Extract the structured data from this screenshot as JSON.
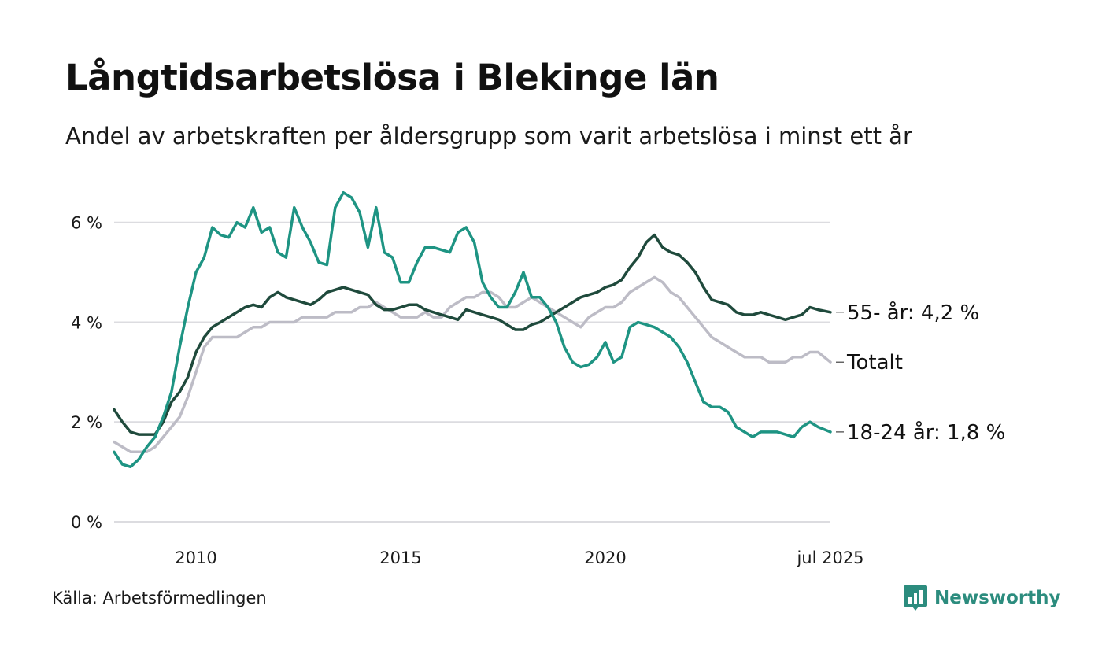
{
  "title": "Långtidsarbetslösa i Blekinge län",
  "subtitle": "Andel av arbetskraften per åldersgrupp som varit arbetslösa i minst ett år",
  "source": "Källa: Arbetsförmedlingen",
  "logo": {
    "text": "Newsworthy",
    "icon": "newsworthy-logo-icon",
    "color": "#2c8c7e"
  },
  "chart_data": {
    "type": "line",
    "title": "Långtidsarbetslösa i Blekinge län",
    "xlabel": "",
    "ylabel": "",
    "xlim": [
      2008.0,
      2025.5
    ],
    "ylim": [
      0,
      6.8
    ],
    "yticks": [
      0,
      2,
      4,
      6
    ],
    "ytick_labels": [
      "0 %",
      "2 %",
      "4 %",
      "6 %"
    ],
    "xticks": [
      2010,
      2015,
      2020,
      2025.5
    ],
    "xtick_labels": [
      "2010",
      "2015",
      "2020",
      "jul 2025"
    ],
    "grid": "horizontal",
    "legend": "direct labels at right end of lines",
    "series": [
      {
        "name": "Totalt",
        "end_label": "Totalt",
        "color": "#bdbcc6",
        "x": [
          2008.0,
          2008.2,
          2008.4,
          2008.6,
          2008.8,
          2009.0,
          2009.2,
          2009.4,
          2009.6,
          2009.8,
          2010.0,
          2010.2,
          2010.4,
          2010.6,
          2010.8,
          2011.0,
          2011.2,
          2011.4,
          2011.6,
          2011.8,
          2012.0,
          2012.2,
          2012.4,
          2012.6,
          2012.8,
          2013.0,
          2013.2,
          2013.4,
          2013.6,
          2013.8,
          2014.0,
          2014.2,
          2014.4,
          2014.6,
          2014.8,
          2015.0,
          2015.2,
          2015.4,
          2015.6,
          2015.8,
          2016.0,
          2016.2,
          2016.4,
          2016.6,
          2016.8,
          2017.0,
          2017.2,
          2017.4,
          2017.6,
          2017.8,
          2018.0,
          2018.2,
          2018.4,
          2018.6,
          2018.8,
          2019.0,
          2019.2,
          2019.4,
          2019.6,
          2019.8,
          2020.0,
          2020.2,
          2020.4,
          2020.6,
          2020.8,
          2021.0,
          2021.2,
          2021.4,
          2021.6,
          2021.8,
          2022.0,
          2022.2,
          2022.4,
          2022.6,
          2022.8,
          2023.0,
          2023.2,
          2023.4,
          2023.6,
          2023.8,
          2024.0,
          2024.2,
          2024.4,
          2024.6,
          2024.8,
          2025.0,
          2025.2,
          2025.5
        ],
        "y": [
          1.6,
          1.5,
          1.4,
          1.4,
          1.4,
          1.5,
          1.7,
          1.9,
          2.1,
          2.5,
          3.0,
          3.5,
          3.7,
          3.7,
          3.7,
          3.7,
          3.8,
          3.9,
          3.9,
          4.0,
          4.0,
          4.0,
          4.0,
          4.1,
          4.1,
          4.1,
          4.1,
          4.2,
          4.2,
          4.2,
          4.3,
          4.3,
          4.4,
          4.3,
          4.2,
          4.1,
          4.1,
          4.1,
          4.2,
          4.1,
          4.1,
          4.3,
          4.4,
          4.5,
          4.5,
          4.6,
          4.6,
          4.5,
          4.3,
          4.3,
          4.4,
          4.5,
          4.4,
          4.3,
          4.2,
          4.1,
          4.0,
          3.9,
          4.1,
          4.2,
          4.3,
          4.3,
          4.4,
          4.6,
          4.7,
          4.8,
          4.9,
          4.8,
          4.6,
          4.5,
          4.3,
          4.1,
          3.9,
          3.7,
          3.6,
          3.5,
          3.4,
          3.3,
          3.3,
          3.3,
          3.2,
          3.2,
          3.2,
          3.3,
          3.3,
          3.4,
          3.4,
          3.2
        ]
      },
      {
        "name": "55- år",
        "end_label": "55- år: 4,2 %",
        "color": "#1f4a3c",
        "x": [
          2008.0,
          2008.2,
          2008.4,
          2008.6,
          2008.8,
          2009.0,
          2009.2,
          2009.4,
          2009.6,
          2009.8,
          2010.0,
          2010.2,
          2010.4,
          2010.6,
          2010.8,
          2011.0,
          2011.2,
          2011.4,
          2011.6,
          2011.8,
          2012.0,
          2012.2,
          2012.4,
          2012.6,
          2012.8,
          2013.0,
          2013.2,
          2013.4,
          2013.6,
          2013.8,
          2014.0,
          2014.2,
          2014.4,
          2014.6,
          2014.8,
          2015.0,
          2015.2,
          2015.4,
          2015.6,
          2015.8,
          2016.0,
          2016.2,
          2016.4,
          2016.6,
          2016.8,
          2017.0,
          2017.2,
          2017.4,
          2017.6,
          2017.8,
          2018.0,
          2018.2,
          2018.4,
          2018.6,
          2018.8,
          2019.0,
          2019.2,
          2019.4,
          2019.6,
          2019.8,
          2020.0,
          2020.2,
          2020.4,
          2020.6,
          2020.8,
          2021.0,
          2021.2,
          2021.4,
          2021.6,
          2021.8,
          2022.0,
          2022.2,
          2022.4,
          2022.6,
          2022.8,
          2023.0,
          2023.2,
          2023.4,
          2023.6,
          2023.8,
          2024.0,
          2024.2,
          2024.4,
          2024.6,
          2024.8,
          2025.0,
          2025.2,
          2025.5
        ],
        "y": [
          2.25,
          2.0,
          1.8,
          1.75,
          1.75,
          1.75,
          2.0,
          2.4,
          2.6,
          2.9,
          3.4,
          3.7,
          3.9,
          4.0,
          4.1,
          4.2,
          4.3,
          4.35,
          4.3,
          4.5,
          4.6,
          4.5,
          4.45,
          4.4,
          4.35,
          4.45,
          4.6,
          4.65,
          4.7,
          4.65,
          4.6,
          4.55,
          4.35,
          4.25,
          4.25,
          4.3,
          4.35,
          4.35,
          4.25,
          4.2,
          4.15,
          4.1,
          4.05,
          4.25,
          4.2,
          4.15,
          4.1,
          4.05,
          3.95,
          3.85,
          3.85,
          3.95,
          4.0,
          4.1,
          4.2,
          4.3,
          4.4,
          4.5,
          4.55,
          4.6,
          4.7,
          4.75,
          4.85,
          5.1,
          5.3,
          5.6,
          5.75,
          5.5,
          5.4,
          5.35,
          5.2,
          5.0,
          4.7,
          4.45,
          4.4,
          4.35,
          4.2,
          4.15,
          4.15,
          4.2,
          4.15,
          4.1,
          4.05,
          4.1,
          4.15,
          4.3,
          4.25,
          4.2
        ]
      },
      {
        "name": "18-24 år",
        "end_label": "18-24 år: 1,8 %",
        "color": "#1e9483",
        "x": [
          2008.0,
          2008.2,
          2008.4,
          2008.6,
          2008.8,
          2009.0,
          2009.2,
          2009.4,
          2009.6,
          2009.8,
          2010.0,
          2010.2,
          2010.4,
          2010.6,
          2010.8,
          2011.0,
          2011.2,
          2011.4,
          2011.6,
          2011.8,
          2012.0,
          2012.2,
          2012.4,
          2012.6,
          2012.8,
          2013.0,
          2013.2,
          2013.4,
          2013.6,
          2013.8,
          2014.0,
          2014.2,
          2014.4,
          2014.6,
          2014.8,
          2015.0,
          2015.2,
          2015.4,
          2015.6,
          2015.8,
          2016.0,
          2016.2,
          2016.4,
          2016.6,
          2016.8,
          2017.0,
          2017.2,
          2017.4,
          2017.6,
          2017.8,
          2018.0,
          2018.2,
          2018.4,
          2018.6,
          2018.8,
          2019.0,
          2019.2,
          2019.4,
          2019.6,
          2019.8,
          2020.0,
          2020.2,
          2020.4,
          2020.6,
          2020.8,
          2021.0,
          2021.2,
          2021.4,
          2021.6,
          2021.8,
          2022.0,
          2022.2,
          2022.4,
          2022.6,
          2022.8,
          2023.0,
          2023.2,
          2023.4,
          2023.6,
          2023.8,
          2024.0,
          2024.2,
          2024.4,
          2024.6,
          2024.8,
          2025.0,
          2025.2,
          2025.5
        ],
        "y": [
          1.4,
          1.15,
          1.1,
          1.25,
          1.5,
          1.7,
          2.1,
          2.6,
          3.5,
          4.3,
          5.0,
          5.3,
          5.9,
          5.75,
          5.7,
          6.0,
          5.9,
          6.3,
          5.8,
          5.9,
          5.4,
          5.3,
          6.3,
          5.9,
          5.6,
          5.2,
          5.15,
          6.3,
          6.6,
          6.5,
          6.2,
          5.5,
          6.3,
          5.4,
          5.3,
          4.8,
          4.8,
          5.2,
          5.5,
          5.5,
          5.45,
          5.4,
          5.8,
          5.9,
          5.6,
          4.8,
          4.5,
          4.3,
          4.3,
          4.6,
          5.0,
          4.5,
          4.5,
          4.3,
          4.0,
          3.5,
          3.2,
          3.1,
          3.15,
          3.3,
          3.6,
          3.2,
          3.3,
          3.9,
          4.0,
          3.95,
          3.9,
          3.8,
          3.7,
          3.5,
          3.2,
          2.8,
          2.4,
          2.3,
          2.3,
          2.2,
          1.9,
          1.8,
          1.7,
          1.8,
          1.8,
          1.8,
          1.75,
          1.7,
          1.9,
          2.0,
          1.9,
          1.8
        ]
      }
    ]
  }
}
